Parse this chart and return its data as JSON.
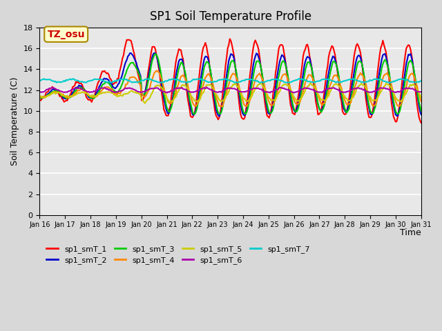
{
  "title": "SP1 Soil Temperature Profile",
  "xlabel": "Time",
  "ylabel": "Soil Temperature (C)",
  "ylim": [
    0,
    18
  ],
  "yticks": [
    0,
    2,
    4,
    6,
    8,
    10,
    12,
    14,
    16,
    18
  ],
  "x_labels": [
    "Jan 16",
    "Jan 17",
    "Jan 18",
    "Jan 19",
    "Jan 20",
    "Jan 21",
    "Jan 22",
    "Jan 23",
    "Jan 24",
    "Jan 25",
    "Jan 26",
    "Jan 27",
    "Jan 28",
    "Jan 29",
    "Jan 30",
    "Jan 31"
  ],
  "annotation": "TZ_osu",
  "series_colors": {
    "sp1_smT_1": "#ff0000",
    "sp1_smT_2": "#0000cc",
    "sp1_smT_3": "#00cc00",
    "sp1_smT_4": "#ff8800",
    "sp1_smT_5": "#cccc00",
    "sp1_smT_6": "#aa00aa",
    "sp1_smT_7": "#00cccc"
  },
  "background_color": "#e8e8e8",
  "fig_bg_color": "#d8d8d8"
}
